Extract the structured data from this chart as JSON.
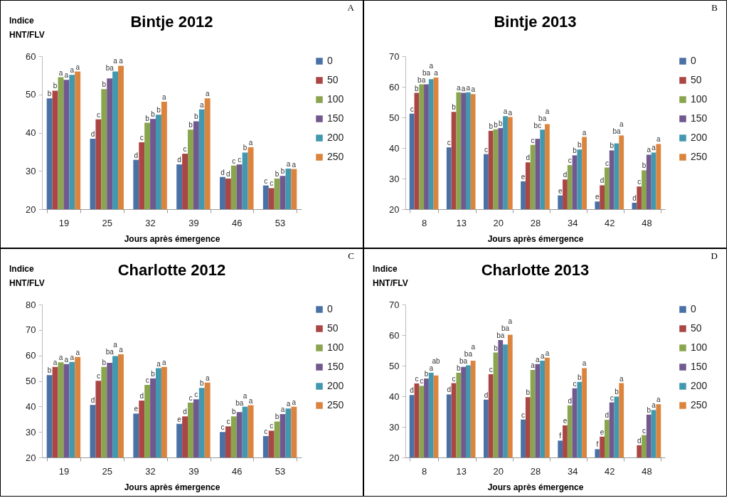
{
  "chart_data": [
    {
      "type": "bar",
      "title": "Bintje 2012",
      "xlabel": "Jours après émergence",
      "ylabel": "Indice HNT/FLV",
      "annotations": [
        "A"
      ],
      "legend": "right",
      "ylim": [
        20,
        60
      ],
      "yticks": [
        20,
        30,
        40,
        50,
        60
      ],
      "categories": [
        "19",
        "25",
        "32",
        "39",
        "46",
        "53"
      ],
      "series": [
        {
          "name": "0",
          "color": "#4a71a6",
          "values": [
            49,
            38.4,
            32.9,
            31.7,
            28.4,
            26.2
          ],
          "value_labels": [
            "b",
            "d",
            "d",
            "d",
            "d",
            "c"
          ]
        },
        {
          "name": "50",
          "color": "#aa4644",
          "values": [
            51,
            43.5,
            37.5,
            34.5,
            28,
            25.5
          ],
          "value_labels": [
            "b",
            "c",
            "c",
            "c",
            "d",
            "c"
          ]
        },
        {
          "name": "100",
          "color": "#89a54e",
          "values": [
            54.5,
            51.4,
            42.6,
            40.8,
            31.4,
            28
          ],
          "value_labels": [
            "a",
            "b",
            "b",
            "b",
            "c",
            "b"
          ]
        },
        {
          "name": "150",
          "color": "#71588f",
          "values": [
            53.8,
            54.2,
            43.6,
            43,
            31.7,
            28.7
          ],
          "value_labels": [
            "a",
            "ba",
            "b",
            "b",
            "c",
            "b"
          ]
        },
        {
          "name": "200",
          "color": "#4198af",
          "values": [
            55.1,
            56,
            44.7,
            46.1,
            34.8,
            30.6
          ],
          "value_labels": [
            "a",
            "a",
            "b",
            "a",
            "b",
            "a"
          ]
        },
        {
          "name": "250",
          "color": "#db843d",
          "values": [
            56,
            57.5,
            48.1,
            49,
            36.2,
            30.5
          ],
          "value_labels": [
            "a",
            "a",
            "a",
            "a",
            "a",
            "a"
          ]
        }
      ]
    },
    {
      "type": "bar",
      "title": "Bintje 2013",
      "xlabel": "Jours après émergence",
      "annotations": [
        "B"
      ],
      "legend": "right",
      "ylim": [
        20,
        70
      ],
      "yticks": [
        20,
        30,
        40,
        50,
        60,
        70
      ],
      "categories": [
        "8",
        "13",
        "20",
        "28",
        "34",
        "42",
        "48"
      ],
      "series": [
        {
          "name": "0",
          "color": "#4a71a6",
          "values": [
            51.2,
            40.2,
            38,
            29.1,
            24.5,
            22.5,
            22.1
          ],
          "value_labels": [
            "c",
            "c",
            "c",
            "e",
            "e",
            "e",
            "d"
          ]
        },
        {
          "name": "50",
          "color": "#aa4644",
          "values": [
            58,
            51.8,
            45.6,
            35.3,
            29.7,
            27.8,
            27.4
          ],
          "value_labels": [
            "b",
            "b",
            "b",
            "d",
            "d",
            "d",
            "c"
          ]
        },
        {
          "name": "100",
          "color": "#89a54e",
          "values": [
            60.8,
            58.2,
            46.1,
            41,
            34.4,
            33.6,
            32.7
          ],
          "value_labels": [
            "ba",
            "a",
            "b",
            "c",
            "c",
            "c",
            "b"
          ]
        },
        {
          "name": "150",
          "color": "#71588f",
          "values": [
            60.8,
            58,
            46.5,
            43,
            37.6,
            39.2,
            37.8
          ],
          "value_labels": [
            "ba",
            "a",
            "b",
            "bc",
            "b",
            "b",
            "a"
          ]
        },
        {
          "name": "200",
          "color": "#4198af",
          "values": [
            62.5,
            58.2,
            50.4,
            46,
            39.5,
            41.5,
            38.5
          ],
          "value_labels": [
            "a",
            "a",
            "a",
            "ba",
            "b",
            "ba",
            "a"
          ]
        },
        {
          "name": "250",
          "color": "#db843d",
          "values": [
            63,
            57.6,
            50.1,
            47.8,
            43.6,
            44.1,
            41.3
          ],
          "value_labels": [
            "a",
            "a",
            "a",
            "a",
            "a",
            "a",
            "a"
          ]
        }
      ]
    },
    {
      "type": "bar",
      "title": "Charlotte 2012",
      "xlabel": "Jours après émergence",
      "ylabel": "Indice HNT/FLV",
      "annotations": [
        "C"
      ],
      "legend": "right",
      "ylim": [
        20,
        80
      ],
      "yticks": [
        20,
        30,
        40,
        50,
        60,
        70,
        80
      ],
      "categories": [
        "19",
        "25",
        "32",
        "39",
        "46",
        "53"
      ],
      "series": [
        {
          "name": "0",
          "color": "#4a71a6",
          "values": [
            52.3,
            40.6,
            37.2,
            33.2,
            30,
            28.4
          ],
          "value_labels": [
            "b",
            "d",
            "e",
            "e",
            "c",
            "c"
          ]
        },
        {
          "name": "50",
          "color": "#aa4644",
          "values": [
            55.5,
            50.1,
            42.3,
            36.1,
            32.2,
            30.5
          ],
          "value_labels": [
            "a",
            "c",
            "d",
            "d",
            "c",
            "c"
          ]
        },
        {
          "name": "100",
          "color": "#89a54e",
          "values": [
            57.3,
            55.5,
            48.5,
            41.5,
            36.1,
            34.1
          ],
          "value_labels": [
            "a",
            "b",
            "c",
            "c",
            "b",
            "b"
          ]
        },
        {
          "name": "150",
          "color": "#71588f",
          "values": [
            56.6,
            57.1,
            51,
            42.8,
            37.8,
            37
          ],
          "value_labels": [
            "a",
            "ba",
            "b",
            "c",
            "ba",
            "a"
          ]
        },
        {
          "name": "200",
          "color": "#4198af",
          "values": [
            57.5,
            59.8,
            55,
            47.3,
            39.9,
            39.2
          ],
          "value_labels": [
            "a",
            "a",
            "a",
            "b",
            "a",
            "a"
          ]
        },
        {
          "name": "250",
          "color": "#db843d",
          "values": [
            59.4,
            60.5,
            55.5,
            49.4,
            40.5,
            39.9
          ],
          "value_labels": [
            "a",
            "a",
            "a",
            "a",
            "a",
            "a"
          ]
        }
      ]
    },
    {
      "type": "bar",
      "title": "Charlotte 2013",
      "xlabel": "Jours après émergence",
      "ylabel": "Indice HNT/FLV",
      "annotations": [
        "D"
      ],
      "legend": "right",
      "ylim": [
        20,
        70
      ],
      "yticks": [
        20,
        30,
        40,
        50,
        60,
        70
      ],
      "categories": [
        "8",
        "13",
        "20",
        "28",
        "34",
        "42",
        "48"
      ],
      "series": [
        {
          "name": "0",
          "color": "#4a71a6",
          "values": [
            40.4,
            40.6,
            38.9,
            32.4,
            25.5,
            22.7,
            null
          ],
          "value_labels": [
            "d",
            "d",
            "d",
            "c",
            "f",
            "f",
            null
          ]
        },
        {
          "name": "50",
          "color": "#aa4644",
          "values": [
            44.2,
            44.3,
            47.2,
            39.7,
            30.5,
            26.8,
            24
          ],
          "value_labels": [
            "c",
            "c",
            "c",
            "b",
            "e",
            "e",
            "d"
          ]
        },
        {
          "name": "100",
          "color": "#89a54e",
          "values": [
            43.4,
            47.7,
            54.3,
            48.6,
            37,
            32.3,
            27.3
          ],
          "value_labels": [
            "c",
            "b",
            "b",
            "a",
            "d",
            "d",
            "c"
          ]
        },
        {
          "name": "150",
          "color": "#71588f",
          "values": [
            45.8,
            49.6,
            58.4,
            50.5,
            42.6,
            38,
            34
          ],
          "value_labels": [
            "b",
            "ba",
            "ba",
            "a",
            "c",
            "c",
            "b"
          ]
        },
        {
          "name": "200",
          "color": "#4198af",
          "values": [
            47.7,
            50.1,
            56.9,
            51.6,
            44.7,
            39.9,
            35.5
          ],
          "value_labels": [
            "a",
            "ba",
            "ba",
            "a",
            "b",
            "b",
            "a"
          ]
        },
        {
          "name": "250",
          "color": "#db843d",
          "values": [
            46.8,
            51.6,
            60.1,
            52.6,
            49.2,
            44.3,
            37.4
          ],
          "value_labels": [
            "ab",
            "a",
            "a",
            "a",
            "a",
            "a",
            "a"
          ]
        }
      ]
    }
  ]
}
